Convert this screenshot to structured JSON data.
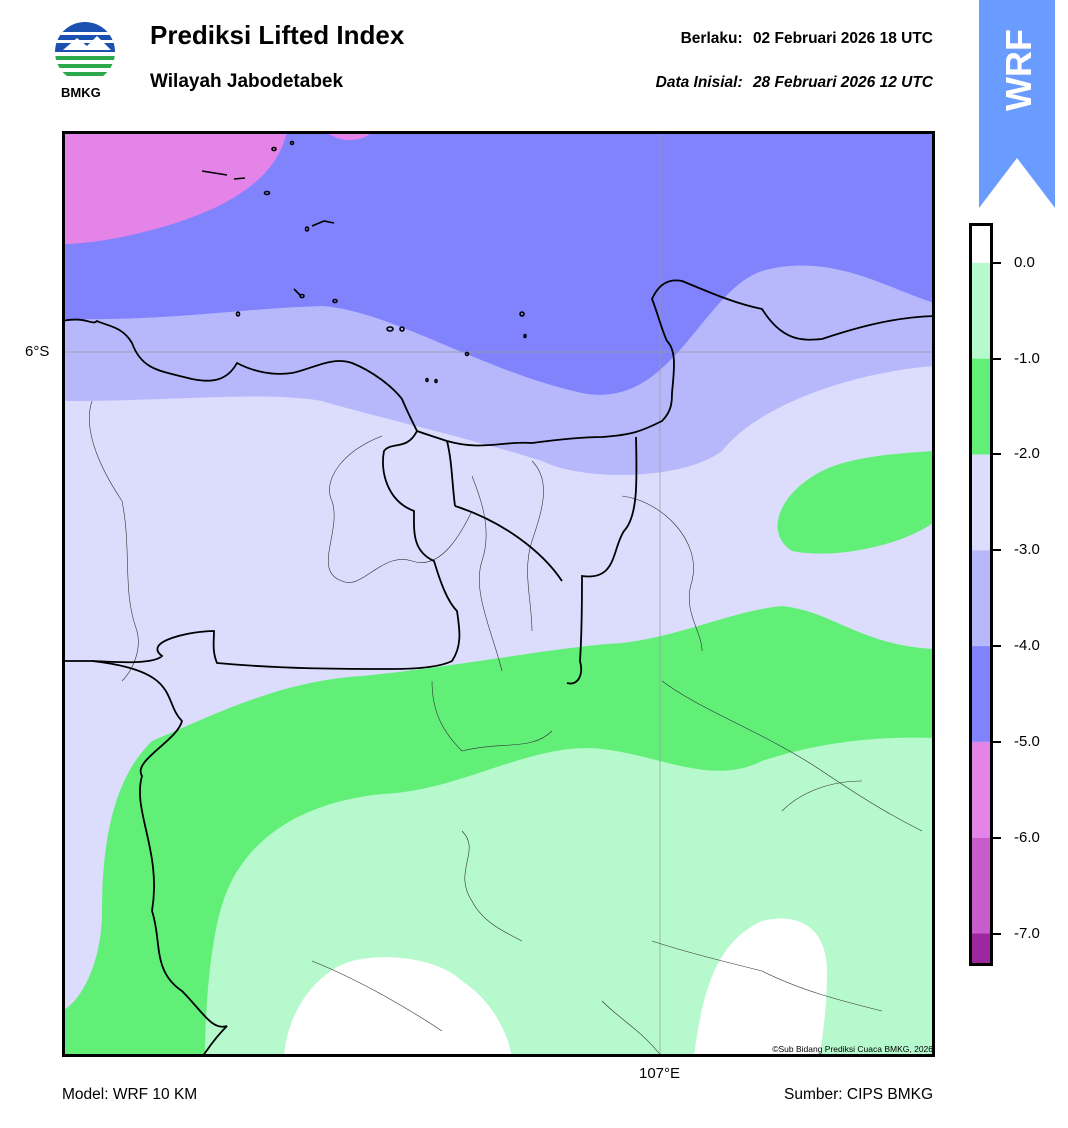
{
  "header": {
    "title": "Prediksi Lifted Index",
    "subtitle": "Wilayah Jabodetabek",
    "valid_label": "Berlaku:",
    "valid_value": "02 Februari 2026 18 UTC",
    "init_label": "Data Inisial:",
    "init_value": "28 Februari 2026 12 UTC"
  },
  "logo": {
    "text": "BMKG",
    "icon": "bmkg-logo-icon"
  },
  "badge": {
    "text": "WRF",
    "color": "#6a9cff"
  },
  "map": {
    "lat_label": "6°S",
    "lon_label": "107°E",
    "copyright": "©Sub Bidang Prediksi Cuaca BMKG, 2026",
    "colors": {
      "magenta": "#e483e8",
      "blue": "#8083fc",
      "lavender": "#b6b8fb",
      "pale": "#dcdcfd",
      "green": "#62ef78",
      "lightgreen": "#b5f9cc",
      "white": "#ffffff"
    }
  },
  "colorbar": {
    "ticks": [
      "0.0",
      "-1.0",
      "-2.0",
      "-3.0",
      "-4.0",
      "-5.0",
      "-6.0",
      "-7.0"
    ],
    "bands": [
      {
        "color": "#ffffff"
      },
      {
        "color": "#b5f9cc"
      },
      {
        "color": "#62ef78"
      },
      {
        "color": "#dcdcfd"
      },
      {
        "color": "#b6b8fb"
      },
      {
        "color": "#8083fc"
      },
      {
        "color": "#e483e8"
      },
      {
        "color": "#c95ccd"
      },
      {
        "color": "#9c279f"
      }
    ]
  },
  "footer": {
    "model": "Model: WRF 10 KM",
    "source": "Sumber: CIPS BMKG"
  }
}
